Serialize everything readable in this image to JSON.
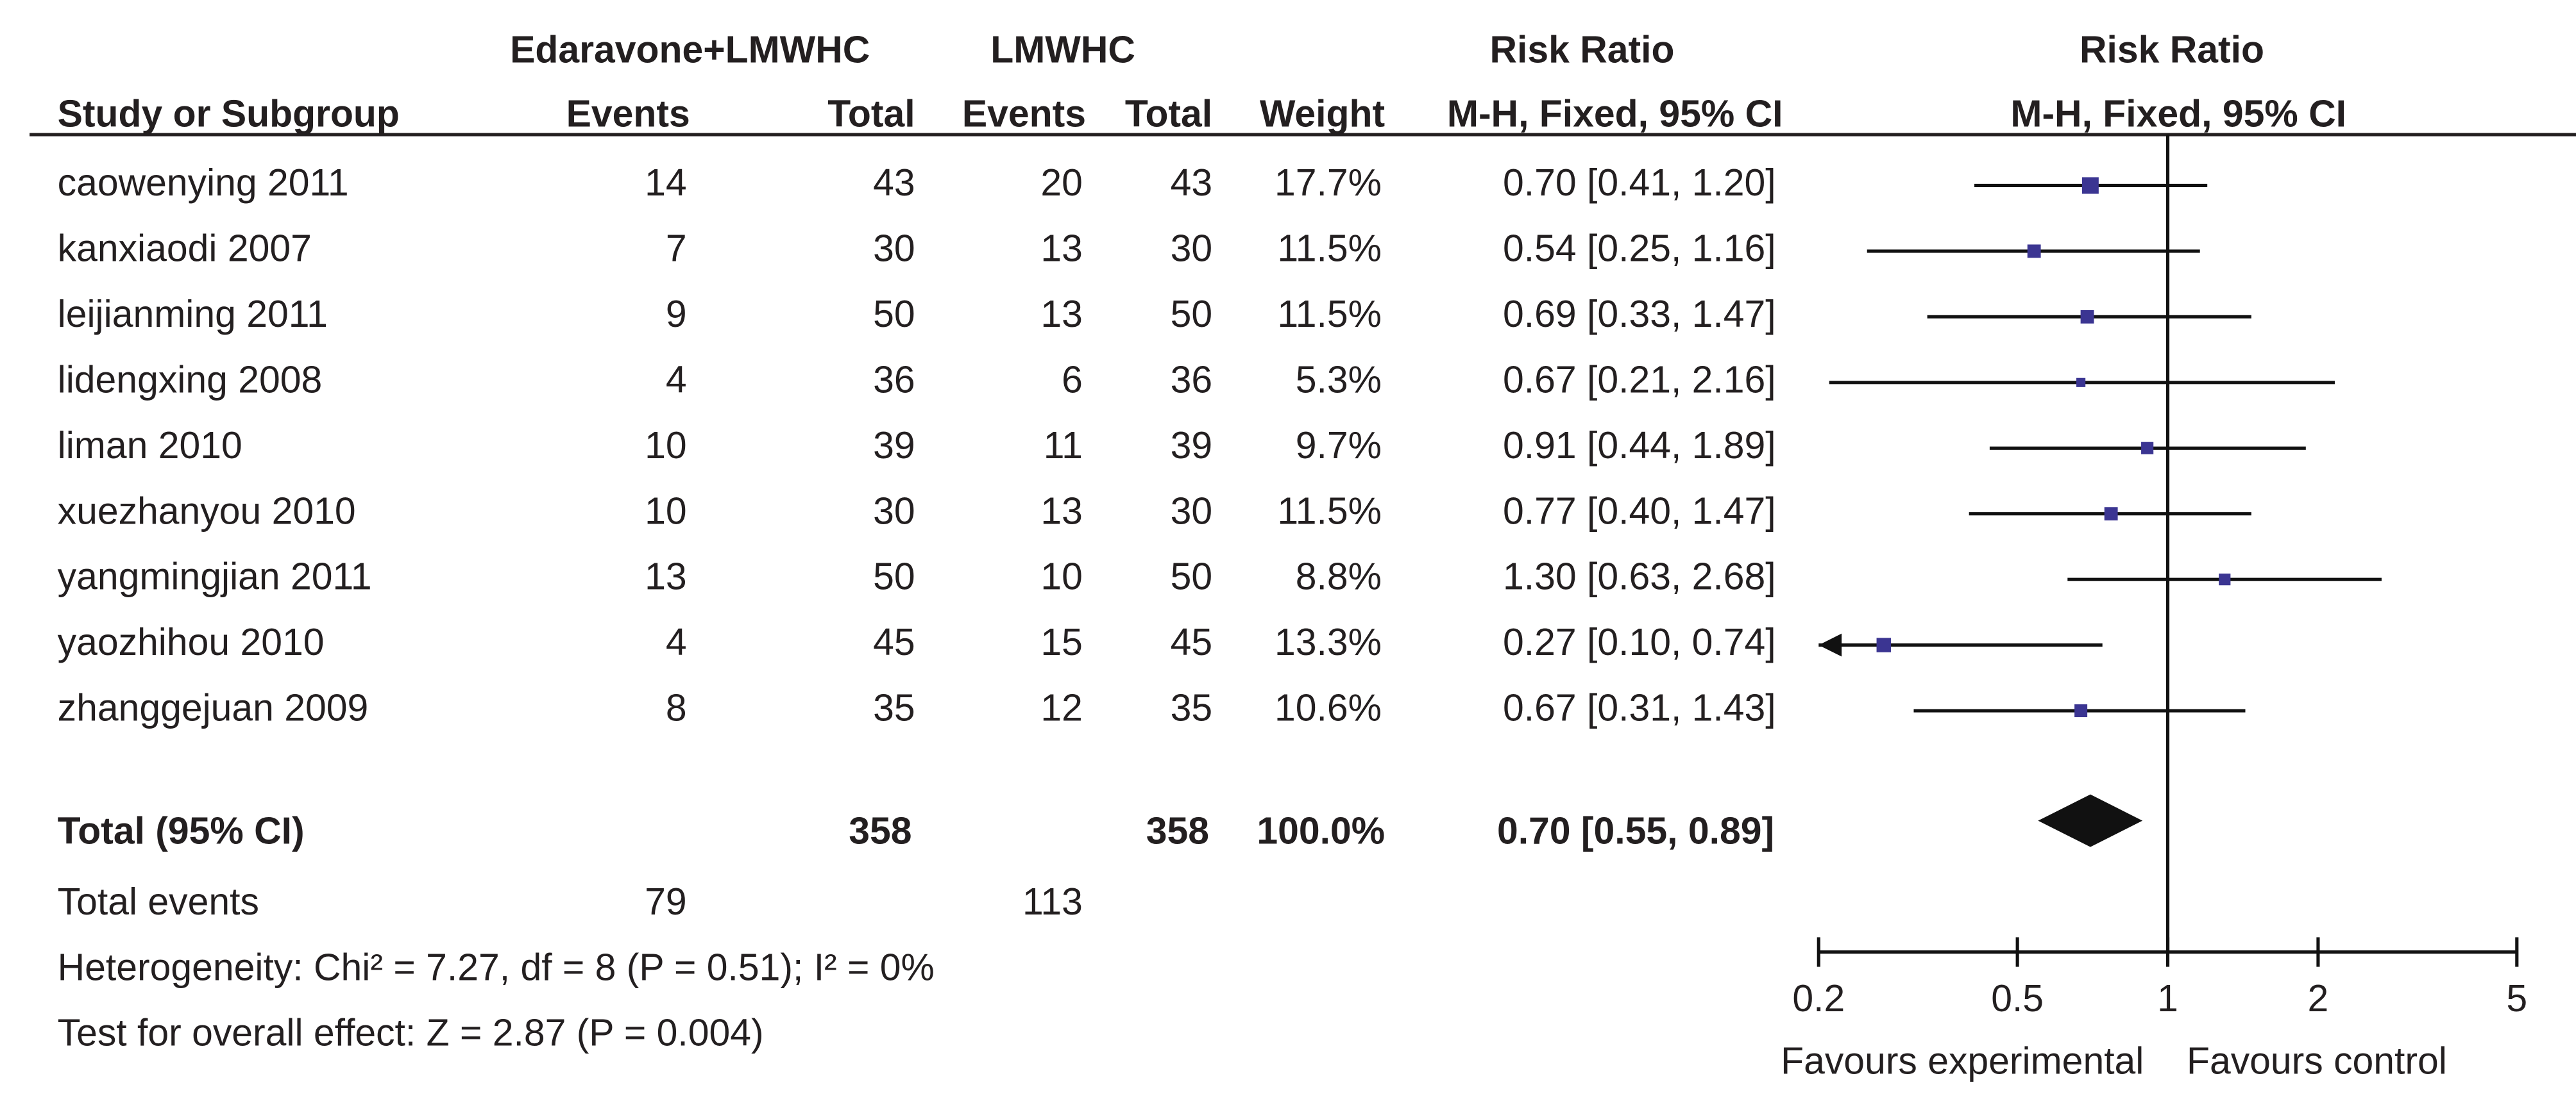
{
  "chart_data": {
    "type": "forest",
    "group_headers": [
      "Edaravone+LMWHC",
      "LMWHC",
      "Risk Ratio",
      "Risk Ratio"
    ],
    "column_headers": [
      "Study or Subgroup",
      "Events",
      "Total",
      "Events",
      "Total",
      "Weight",
      "M-H, Fixed, 95% CI",
      "M-H, Fixed, 95% CI"
    ],
    "studies": [
      {
        "name": "caowenying 2011",
        "exp_events": 14,
        "exp_total": 43,
        "ctl_events": 20,
        "ctl_total": 43,
        "weight": 17.7,
        "weight_label": "17.7%",
        "rr": 0.7,
        "ci_lower": 0.41,
        "ci_upper": 1.2,
        "ci_label": "0.70 [0.41, 1.20]"
      },
      {
        "name": "kanxiaodi 2007",
        "exp_events": 7,
        "exp_total": 30,
        "ctl_events": 13,
        "ctl_total": 30,
        "weight": 11.5,
        "weight_label": "11.5%",
        "rr": 0.54,
        "ci_lower": 0.25,
        "ci_upper": 1.16,
        "ci_label": "0.54 [0.25, 1.16]"
      },
      {
        "name": "leijianming 2011",
        "exp_events": 9,
        "exp_total": 50,
        "ctl_events": 13,
        "ctl_total": 50,
        "weight": 11.5,
        "weight_label": "11.5%",
        "rr": 0.69,
        "ci_lower": 0.33,
        "ci_upper": 1.47,
        "ci_label": "0.69 [0.33, 1.47]"
      },
      {
        "name": "lidengxing 2008",
        "exp_events": 4,
        "exp_total": 36,
        "ctl_events": 6,
        "ctl_total": 36,
        "weight": 5.3,
        "weight_label": "5.3%",
        "rr": 0.67,
        "ci_lower": 0.21,
        "ci_upper": 2.16,
        "ci_label": "0.67 [0.21, 2.16]"
      },
      {
        "name": "liman 2010",
        "exp_events": 10,
        "exp_total": 39,
        "ctl_events": 11,
        "ctl_total": 39,
        "weight": 9.7,
        "weight_label": "9.7%",
        "rr": 0.91,
        "ci_lower": 0.44,
        "ci_upper": 1.89,
        "ci_label": "0.91 [0.44, 1.89]"
      },
      {
        "name": "xuezhanyou 2010",
        "exp_events": 10,
        "exp_total": 30,
        "ctl_events": 13,
        "ctl_total": 30,
        "weight": 11.5,
        "weight_label": "11.5%",
        "rr": 0.77,
        "ci_lower": 0.4,
        "ci_upper": 1.47,
        "ci_label": "0.77 [0.40, 1.47]"
      },
      {
        "name": "yangmingjian 2011",
        "exp_events": 13,
        "exp_total": 50,
        "ctl_events": 10,
        "ctl_total": 50,
        "weight": 8.8,
        "weight_label": "8.8%",
        "rr": 1.3,
        "ci_lower": 0.63,
        "ci_upper": 2.68,
        "ci_label": "1.30 [0.63, 2.68]"
      },
      {
        "name": "yaozhihou 2010",
        "exp_events": 4,
        "exp_total": 45,
        "ctl_events": 15,
        "ctl_total": 45,
        "weight": 13.3,
        "weight_label": "13.3%",
        "rr": 0.27,
        "ci_lower": 0.1,
        "ci_upper": 0.74,
        "ci_label": "0.27 [0.10, 0.74]"
      },
      {
        "name": "zhanggejuan 2009",
        "exp_events": 8,
        "exp_total": 35,
        "ctl_events": 12,
        "ctl_total": 35,
        "weight": 10.6,
        "weight_label": "10.6%",
        "rr": 0.67,
        "ci_lower": 0.31,
        "ci_upper": 1.43,
        "ci_label": "0.67 [0.31, 1.43]"
      }
    ],
    "total": {
      "name": "Total (95% CI)",
      "exp_total": 358,
      "ctl_total": 358,
      "weight": 100,
      "weight_label": "100.0%",
      "rr": 0.7,
      "ci_lower": 0.55,
      "ci_upper": 0.89,
      "ci_label": "0.70 [0.55, 0.89]"
    },
    "total_events": {
      "label": "Total events",
      "exp_events": 79,
      "ctl_events": 113
    },
    "heterogeneity": "Heterogeneity: Chi² = 7.27, df = 8 (P = 0.51); I² = 0%",
    "overall_effect": "Test for overall effect: Z = 2.87 (P = 0.004)",
    "x_scale": "log",
    "xlim": [
      0.2,
      5
    ],
    "xticks": [
      0.2,
      0.5,
      1,
      2,
      5
    ],
    "x_label_left": "Favours experimental",
    "x_label_right": "Favours control",
    "marker_color": "#3b3592",
    "diamond_color": "#111111"
  }
}
